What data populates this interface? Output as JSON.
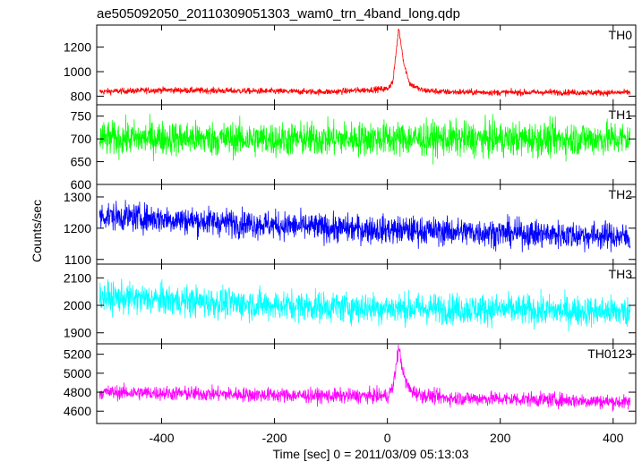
{
  "figure": {
    "title": "ae505092050_20110309051303_wam0_trn_4band_long.qdp",
    "xlabel": "Time [sec] 0 = 2011/03/09 05:13:03",
    "ylabel": "Counts/sec"
  },
  "chart_data": [
    {
      "type": "line",
      "panel": "TH0",
      "series": [
        {
          "name": "TH0",
          "color": "#ff0000"
        }
      ],
      "xlim": [
        -515,
        440
      ],
      "ylim": [
        730,
        1380
      ],
      "yticks": [
        800,
        1000,
        1200
      ],
      "baseline": 835,
      "noise": 18,
      "peak": {
        "x": 20,
        "value": 1355
      },
      "x": [
        -510,
        -500,
        -400,
        -300,
        -200,
        -100,
        0,
        10,
        20,
        30,
        40,
        60,
        100,
        200,
        300,
        400,
        430
      ],
      "values": [
        835,
        838,
        850,
        845,
        840,
        835,
        860,
        920,
        1355,
        1050,
        900,
        850,
        835,
        830,
        832,
        828,
        830
      ]
    },
    {
      "type": "line",
      "panel": "TH1",
      "series": [
        {
          "name": "TH1",
          "color": "#00ff00"
        }
      ],
      "xlim": [
        -515,
        440
      ],
      "ylim": [
        600,
        775
      ],
      "yticks": [
        600,
        650,
        700,
        750
      ],
      "baseline": 700,
      "noise": 27,
      "x": [
        -510,
        -400,
        -300,
        -200,
        -100,
        0,
        100,
        200,
        300,
        400,
        430
      ],
      "values": [
        700,
        702,
        700,
        699,
        700,
        701,
        700,
        699,
        700,
        701,
        700
      ]
    },
    {
      "type": "line",
      "panel": "TH2",
      "series": [
        {
          "name": "TH2",
          "color": "#0000ff"
        }
      ],
      "xlim": [
        -515,
        440
      ],
      "ylim": [
        1085,
        1340
      ],
      "yticks": [
        1100,
        1200,
        1300
      ],
      "baseline": 1200,
      "noise": 32,
      "x": [
        -510,
        -400,
        -300,
        -200,
        -100,
        0,
        100,
        200,
        300,
        400,
        430
      ],
      "values": [
        1240,
        1230,
        1220,
        1210,
        1200,
        1195,
        1190,
        1185,
        1180,
        1175,
        1170
      ]
    },
    {
      "type": "line",
      "panel": "TH3",
      "series": [
        {
          "name": "TH3",
          "color": "#00ffff"
        }
      ],
      "xlim": [
        -515,
        440
      ],
      "ylim": [
        1860,
        2150
      ],
      "yticks": [
        1900,
        2000,
        2100
      ],
      "baseline": 2000,
      "noise": 40,
      "x": [
        -510,
        -400,
        -300,
        -200,
        -100,
        0,
        100,
        200,
        300,
        400,
        430
      ],
      "values": [
        2030,
        2020,
        2010,
        2000,
        1995,
        1990,
        1988,
        1985,
        1980,
        1978,
        1975
      ]
    },
    {
      "type": "line",
      "panel": "TH0123",
      "series": [
        {
          "name": "TH0123",
          "color": "#ff00ff"
        }
      ],
      "xlim": [
        -515,
        440
      ],
      "ylim": [
        4470,
        5310
      ],
      "yticks": [
        4600,
        4800,
        5000,
        5200
      ],
      "baseline": 4770,
      "noise": 55,
      "peak": {
        "x": 20,
        "value": 5270
      },
      "x": [
        -510,
        -400,
        -300,
        -200,
        -100,
        0,
        10,
        20,
        30,
        40,
        60,
        100,
        200,
        300,
        400,
        430
      ],
      "values": [
        4800,
        4790,
        4780,
        4770,
        4760,
        4760,
        4850,
        5270,
        4950,
        4820,
        4770,
        4740,
        4730,
        4720,
        4700,
        4690
      ]
    }
  ],
  "xaxis": {
    "ticks": [
      -400,
      -200,
      0,
      200,
      400
    ]
  }
}
